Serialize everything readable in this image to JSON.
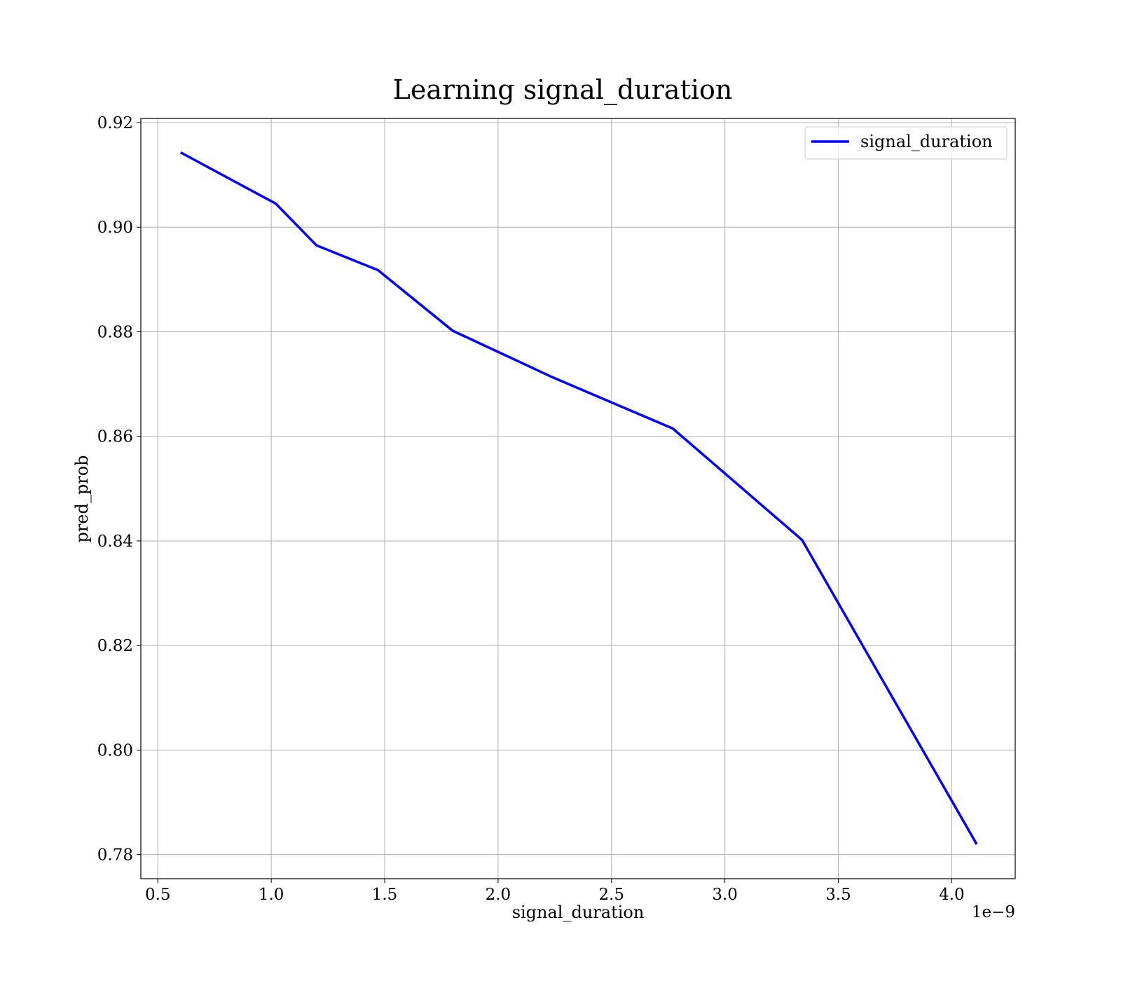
{
  "chart_data": {
    "type": "line",
    "title": "Learning signal_duration",
    "xlabel": "signal_duration",
    "ylabel": "pred_prob",
    "x_offset_label": "1e−9",
    "xlim": [
      0.425,
      4.28
    ],
    "ylim": [
      0.7754,
      0.9208
    ],
    "x_ticks": [
      0.5,
      1.0,
      1.5,
      2.0,
      2.5,
      3.0,
      3.5,
      4.0
    ],
    "x_tick_labels": [
      "0.5",
      "1.0",
      "1.5",
      "2.0",
      "2.5",
      "3.0",
      "3.5",
      "4.0"
    ],
    "y_ticks": [
      0.78,
      0.8,
      0.82,
      0.84,
      0.86,
      0.88,
      0.9,
      0.92
    ],
    "y_tick_labels": [
      "0.78",
      "0.80",
      "0.82",
      "0.84",
      "0.86",
      "0.88",
      "0.90",
      "0.92"
    ],
    "grid": true,
    "legend_position": "top-right",
    "series": [
      {
        "name": "signal_duration",
        "color": "#0000ff",
        "x": [
          0.6,
          1.02,
          1.2,
          1.47,
          1.8,
          2.24,
          2.77,
          3.34,
          4.11
        ],
        "y": [
          0.9143,
          0.9045,
          0.8965,
          0.8918,
          0.8802,
          0.8713,
          0.8615,
          0.8402,
          0.782
        ]
      }
    ]
  }
}
